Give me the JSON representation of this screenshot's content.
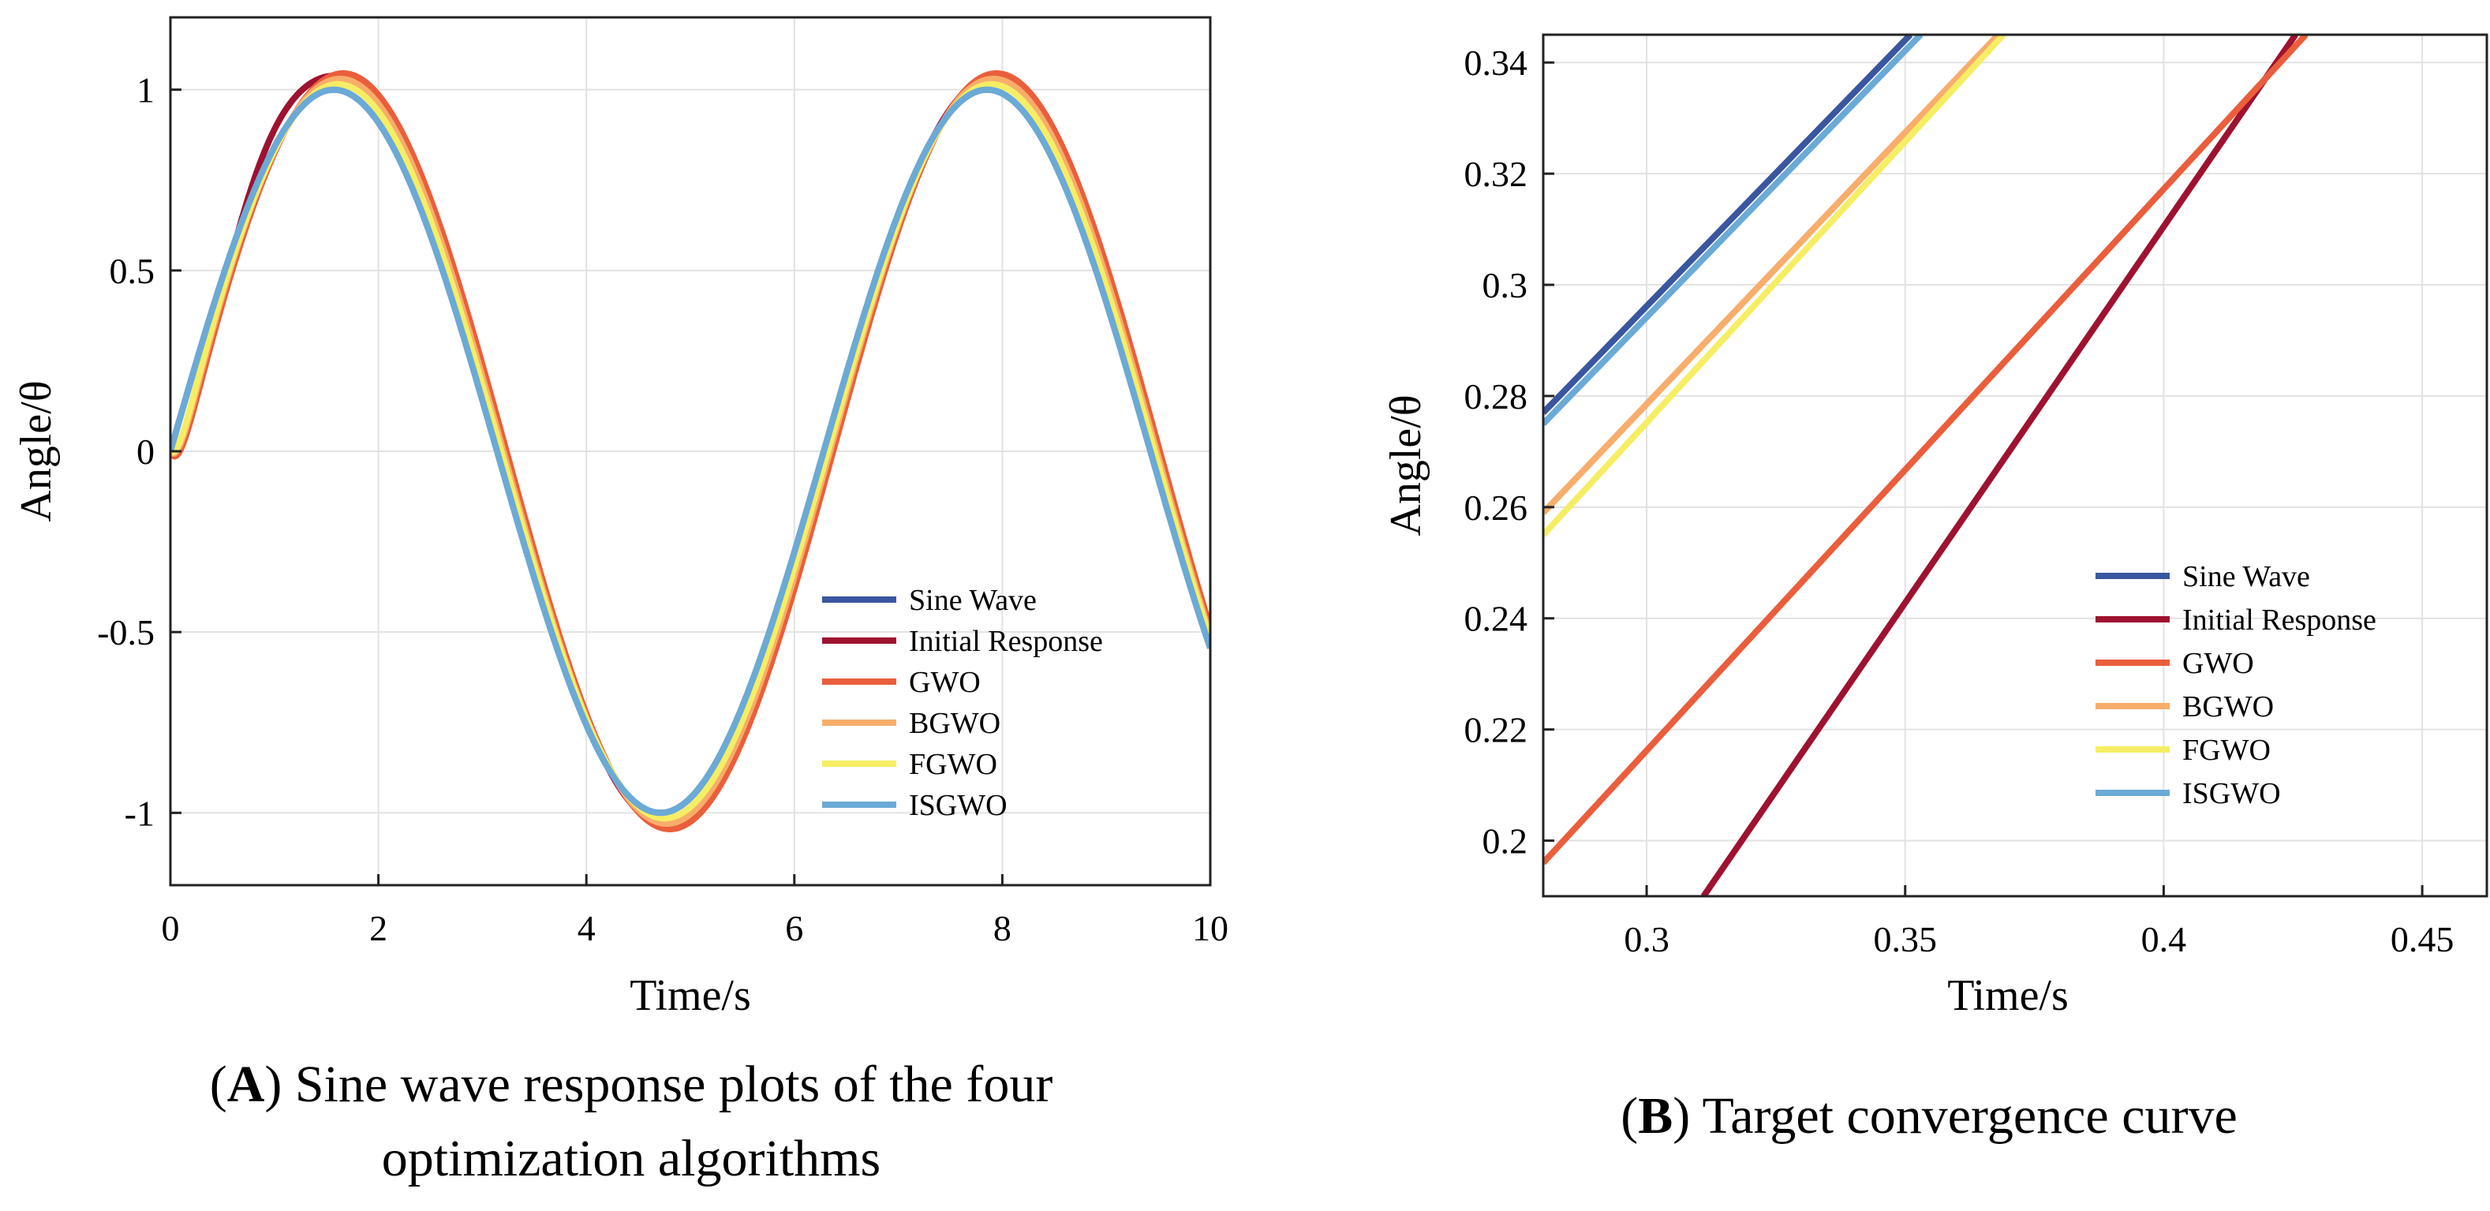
{
  "chart_data": [
    {
      "type": "line",
      "panel": "A",
      "caption_letter": "A",
      "caption_line1": " Sine wave response plots of the four",
      "caption_line2": "optimization algorithms",
      "xlabel": "Time/s",
      "ylabel": "Angle/θ",
      "xlim": [
        0,
        10
      ],
      "ylim": [
        -1.2,
        1.2
      ],
      "xticks": [
        0,
        2,
        4,
        6,
        8,
        10
      ],
      "xtick_labels": [
        "0",
        "2",
        "4",
        "6",
        "8",
        "10"
      ],
      "yticks": [
        1,
        0.5,
        0,
        -0.5,
        -1
      ],
      "ytick_labels": [
        "1",
        "0.5",
        "0",
        "-0.5",
        "-1"
      ],
      "grid": true,
      "legend_position": "bottom-right",
      "series": [
        {
          "name": "Sine Wave",
          "color": "#3a56a0",
          "model": "sine",
          "amp": 1.0,
          "lag": 0.0
        },
        {
          "name": "Initial Response",
          "color": "#9e1230",
          "model": "initial",
          "amp": 1.03,
          "lag": 0.05
        },
        {
          "name": "GWO",
          "color": "#ea5e3c",
          "model": "lag",
          "amp": 1.045,
          "lag": 0.09
        },
        {
          "name": "BGWO",
          "color": "#f8ad6b",
          "model": "lag",
          "amp": 1.03,
          "lag": 0.06
        },
        {
          "name": "FGWO",
          "color": "#f5ee64",
          "model": "lag",
          "amp": 1.015,
          "lag": 0.04
        },
        {
          "name": "ISGWO",
          "color": "#6baad6",
          "model": "sine",
          "amp": 1.0,
          "lag": 0.0
        }
      ]
    },
    {
      "type": "line",
      "panel": "B",
      "caption_letter": "B",
      "caption_line1": " Target convergence curve",
      "xlabel": "Time/s",
      "ylabel": "Angle/θ",
      "xlim": [
        0.28,
        0.4625
      ],
      "ylim": [
        0.19,
        0.345
      ],
      "xticks": [
        0.3,
        0.35,
        0.4,
        0.45
      ],
      "xtick_labels": [
        "0.3",
        "0.35",
        "0.4",
        "0.45"
      ],
      "yticks": [
        0.34,
        0.32,
        0.3,
        0.28,
        0.26,
        0.24,
        0.22,
        0.2
      ],
      "ytick_labels": [
        "0.34",
        "0.32",
        "0.3",
        "0.28",
        "0.26",
        "0.24",
        "0.22",
        "0.2"
      ],
      "grid": true,
      "legend_position": "bottom-right",
      "series": [
        {
          "name": "Sine Wave",
          "color": "#3a56a0",
          "x": [
            0.28,
            0.351
          ],
          "y": [
            0.277,
            0.345
          ]
        },
        {
          "name": "Initial Response",
          "color": "#9e1230",
          "x": [
            0.311,
            0.4255
          ],
          "y": [
            0.19,
            0.345
          ]
        },
        {
          "name": "GWO",
          "color": "#ea5e3c",
          "x": [
            0.28,
            0.4275
          ],
          "y": [
            0.196,
            0.345
          ]
        },
        {
          "name": "BGWO",
          "color": "#f8ad6b",
          "x": [
            0.28,
            0.368
          ],
          "y": [
            0.259,
            0.345
          ]
        },
        {
          "name": "FGWO",
          "color": "#f5ee64",
          "x": [
            0.28,
            0.369
          ],
          "y": [
            0.255,
            0.345
          ]
        },
        {
          "name": "ISGWO",
          "color": "#6baad6",
          "x": [
            0.28,
            0.353
          ],
          "y": [
            0.275,
            0.345
          ]
        }
      ]
    }
  ]
}
